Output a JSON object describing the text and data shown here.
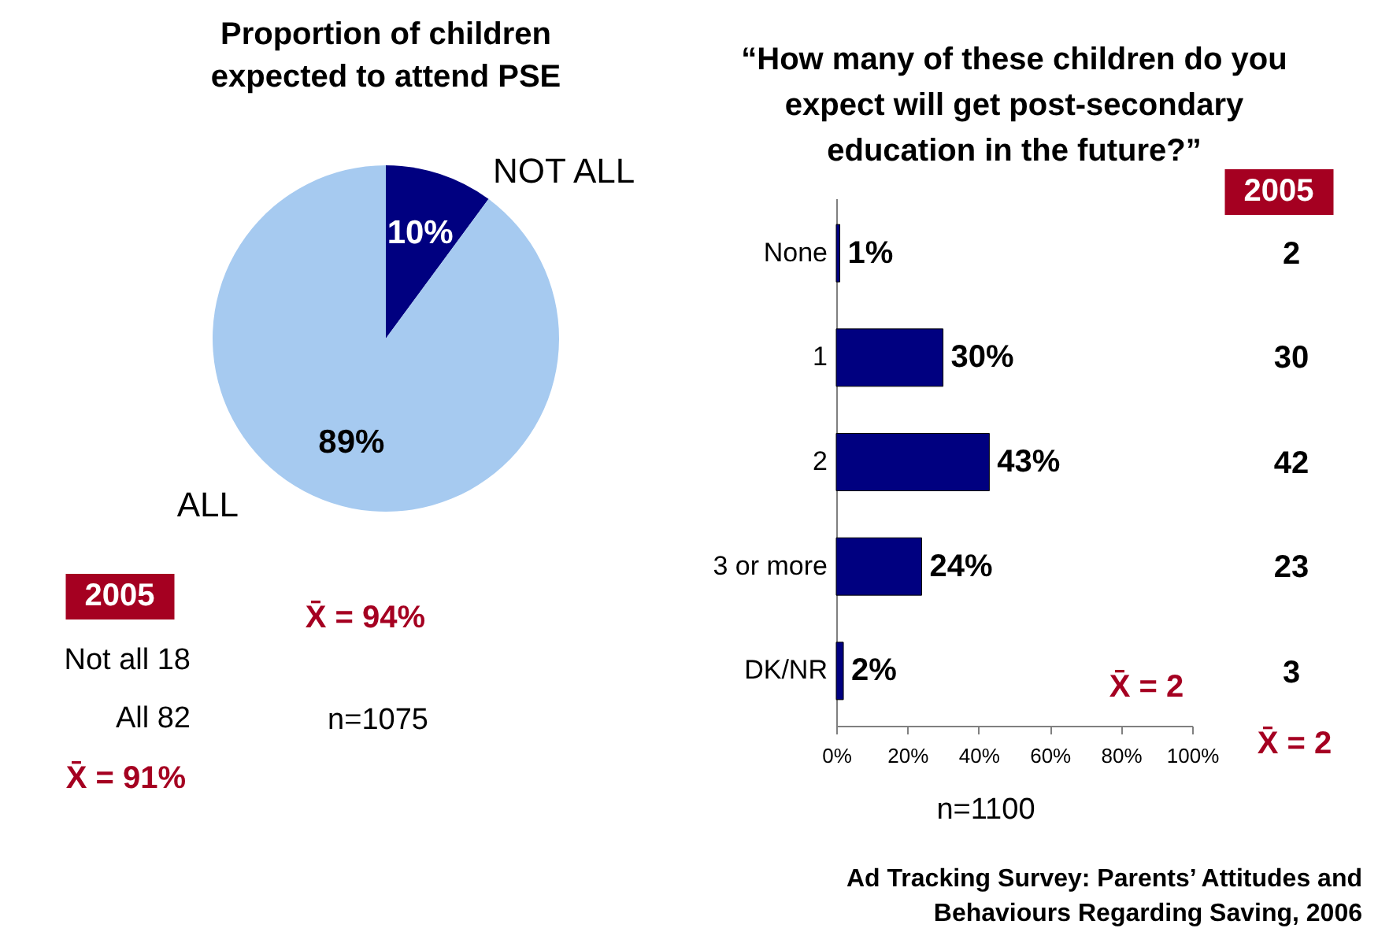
{
  "chart_data": [
    {
      "type": "pie",
      "title": "Proportion of children\nexpected to attend PSE",
      "categories": [
        "NOT ALL",
        "ALL"
      ],
      "values": [
        10,
        89
      ],
      "colors": [
        "#000080",
        "#a6caf0"
      ],
      "value_labels": [
        "10%",
        "89%"
      ],
      "annotations": [
        "2005",
        "Not all 18",
        "All 82",
        "X̄ = 91%",
        "X̄ = 94%",
        "n=1075"
      ]
    },
    {
      "type": "bar",
      "orientation": "horizontal",
      "title": "“How many of these children do you\nexpect will get post-secondary\neducation in the future?”",
      "categories": [
        "None",
        "1",
        "2",
        "3 or more",
        "DK/NR"
      ],
      "values": [
        1,
        30,
        43,
        24,
        2
      ],
      "color": "#000080",
      "value_labels": [
        "1%",
        "30%",
        "43%",
        "24%",
        "2%"
      ],
      "xlim": [
        0,
        100
      ],
      "xticks": [
        {
          "value": 0,
          "label": "0%"
        },
        {
          "value": 20,
          "label": "20%"
        },
        {
          "value": 40,
          "label": "40%"
        },
        {
          "value": 60,
          "label": "60%"
        },
        {
          "value": 80,
          "label": "80%"
        },
        {
          "value": 100,
          "label": "100%"
        }
      ],
      "grid": false,
      "annotations": [
        "2005",
        "2",
        "30",
        "42",
        "23",
        "3",
        "X̄ = 2",
        "X̄ = 2",
        "n=1100",
        "Ad Tracking Survey: Parents’ Attitudes and\nBehaviours Regarding Saving, 2006"
      ]
    }
  ]
}
